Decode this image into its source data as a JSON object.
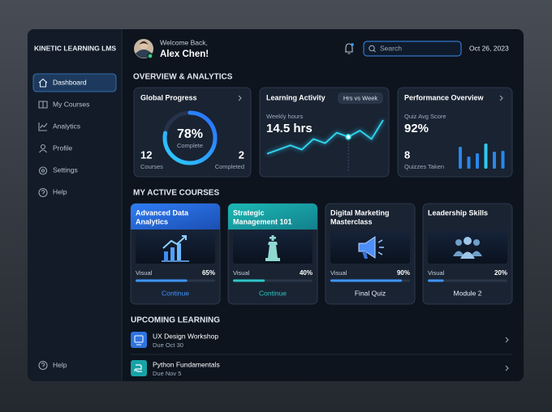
{
  "sidebar": {
    "brand": "KINETIC LEARNING LMS",
    "nav": [
      "Dashboard",
      "My Courses",
      "Analytics",
      "Profile",
      "Settings",
      "Help"
    ],
    "footer": "Help"
  },
  "header": {
    "greeting": "Welcome Back,",
    "user": "Alex Chen!",
    "search_placeholder": "Search",
    "date": "Oct 26, 2023"
  },
  "overview": {
    "title": "OVERVIEW & ANALYTICS",
    "global_progress": {
      "title": "Global Progress",
      "percent": "78%",
      "percent_caption": "Complete",
      "courses": "12",
      "courses_label": "Courses",
      "completed": "2",
      "completed_label": "Completed"
    },
    "learning_activity": {
      "title": "Learning Activity",
      "toggle": "Hrs vs Week",
      "metric_label": "Weekly hours",
      "metric": "14.5 hrs",
      "trend": [
        2,
        3,
        4,
        3,
        5.5,
        4.5,
        7,
        6,
        7.5,
        5.5,
        10
      ]
    },
    "performance": {
      "title": "Performance Overview",
      "score_label": "Quiz Avg Score",
      "score": "92%",
      "quizzes": "8",
      "quizzes_label": "Quizzes Taken",
      "bars": [
        27,
        15,
        19,
        31,
        21,
        22
      ]
    }
  },
  "courses": {
    "title": "MY ACTIVE COURSES",
    "items": [
      {
        "title": [
          "Advanced Data",
          "Analytics"
        ],
        "progress_label": "Visual",
        "progress": "65%",
        "action": "Continue"
      },
      {
        "title": [
          "Strategic",
          "Management 101"
        ],
        "progress_label": "Visual",
        "progress": "40%",
        "action": "Continue"
      },
      {
        "title": [
          "Digital Marketing",
          "Masterclass"
        ],
        "progress_label": "Visual",
        "progress": "90%",
        "action": "Final Quiz"
      },
      {
        "title": [
          "Leadership Skills"
        ],
        "progress_label": "Visual",
        "progress": "20%",
        "action": "Module 2"
      }
    ]
  },
  "upcoming": {
    "title": "UPCOMING LEARNING",
    "items": [
      {
        "title": "UX Design Workshop",
        "due": "Due Oct 30"
      },
      {
        "title": "Python Fundamentals",
        "due": "Due Nov 5"
      }
    ]
  }
}
